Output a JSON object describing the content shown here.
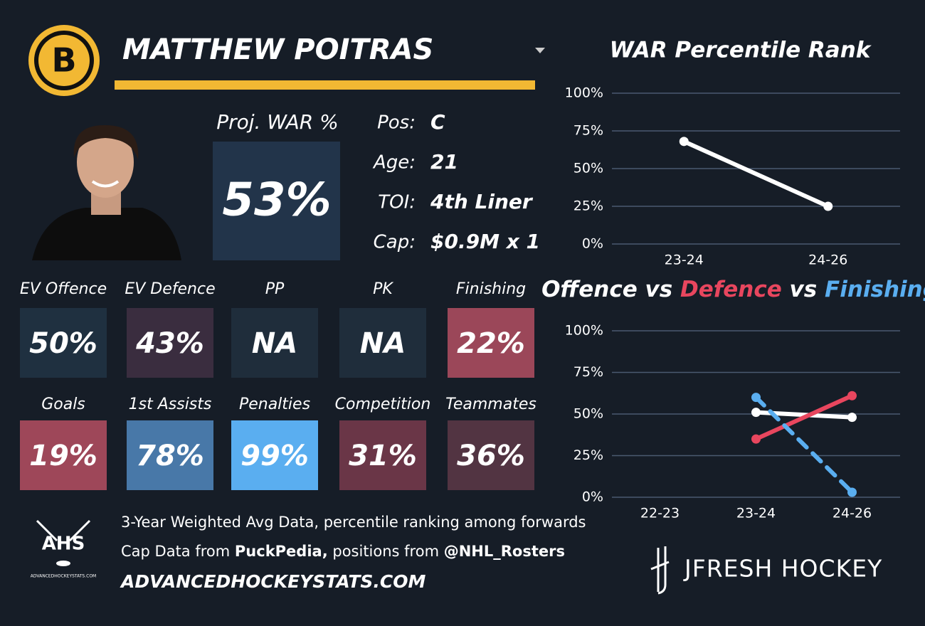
{
  "header": {
    "logo_letter": "B",
    "name": "MATTHEW POITRAS"
  },
  "projection": {
    "label": "Proj. WAR %",
    "value": "53%"
  },
  "info": [
    {
      "label": "Pos:",
      "value": "C"
    },
    {
      "label": "Age:",
      "value": "21"
    },
    {
      "label": "TOI:",
      "value": "4th Liner"
    },
    {
      "label": "Cap:",
      "value": "$0.9M x 1"
    }
  ],
  "tiles": [
    {
      "label": "EV Offence",
      "value": "50%",
      "color": "#1f3040"
    },
    {
      "label": "EV Defence",
      "value": "43%",
      "color": "#3a2d3f"
    },
    {
      "label": "PP",
      "value": "NA",
      "color": "#1f2d3b"
    },
    {
      "label": "PK",
      "value": "NA",
      "color": "#1f2d3b"
    },
    {
      "label": "Finishing",
      "value": "22%",
      "color": "#9b4759"
    },
    {
      "label": "Goals",
      "value": "19%",
      "color": "#9e4759"
    },
    {
      "label": "1st Assists",
      "value": "78%",
      "color": "#4878a8"
    },
    {
      "label": "Penalties",
      "value": "99%",
      "color": "#5aaef0"
    },
    {
      "label": "Competition",
      "value": "31%",
      "color": "#6a3647"
    },
    {
      "label": "Teammates",
      "value": "36%",
      "color": "#523442"
    }
  ],
  "footer": {
    "logo_text": "AHS",
    "logo_caption": "ADVANCEDHOCKEYSTATS.COM",
    "note": "3-Year Weighted Avg Data, percentile ranking among forwards",
    "sources": [
      {
        "text": "Cap Data from ",
        "bold": false
      },
      {
        "text": "PuckPedia,",
        "bold": true
      },
      {
        "text": " positions from ",
        "bold": false
      },
      {
        "text": "@NHL_Rosters",
        "bold": true
      }
    ],
    "site": "ADVANCEDHOCKEYSTATS.COM",
    "brand": "JFRESH HOCKEY"
  },
  "chart_data": [
    {
      "type": "line",
      "title": "WAR Percentile Rank",
      "categories": [
        "23-24",
        "24-26"
      ],
      "values": [
        68,
        25
      ],
      "color": "#ffffff",
      "ylim": [
        0,
        100
      ],
      "yticks": [
        {
          "value": 0,
          "label": "0%"
        },
        {
          "value": 25,
          "label": "25%"
        },
        {
          "value": 50,
          "label": "50%"
        },
        {
          "value": 75,
          "label": "75%"
        },
        {
          "value": 100,
          "label": "100%"
        }
      ],
      "grid": true
    },
    {
      "type": "line",
      "legend_separator": "vs",
      "categories": [
        "22-23",
        "23-24",
        "24-26"
      ],
      "series": [
        {
          "name": "Offence",
          "color": "#ffffff",
          "values": [
            null,
            51,
            48
          ]
        },
        {
          "name": "Defence",
          "color": "#e8465e",
          "values": [
            null,
            35,
            61
          ]
        },
        {
          "name": "Finishing",
          "color": "#5aaef0",
          "values": [
            null,
            60,
            3
          ],
          "dashed": true
        }
      ],
      "ylim": [
        0,
        100
      ],
      "yticks": [
        {
          "value": 0,
          "label": "0%"
        },
        {
          "value": 25,
          "label": "25%"
        },
        {
          "value": 50,
          "label": "50%"
        },
        {
          "value": 75,
          "label": "75%"
        },
        {
          "value": 100,
          "label": "100%"
        }
      ],
      "grid": true
    }
  ]
}
